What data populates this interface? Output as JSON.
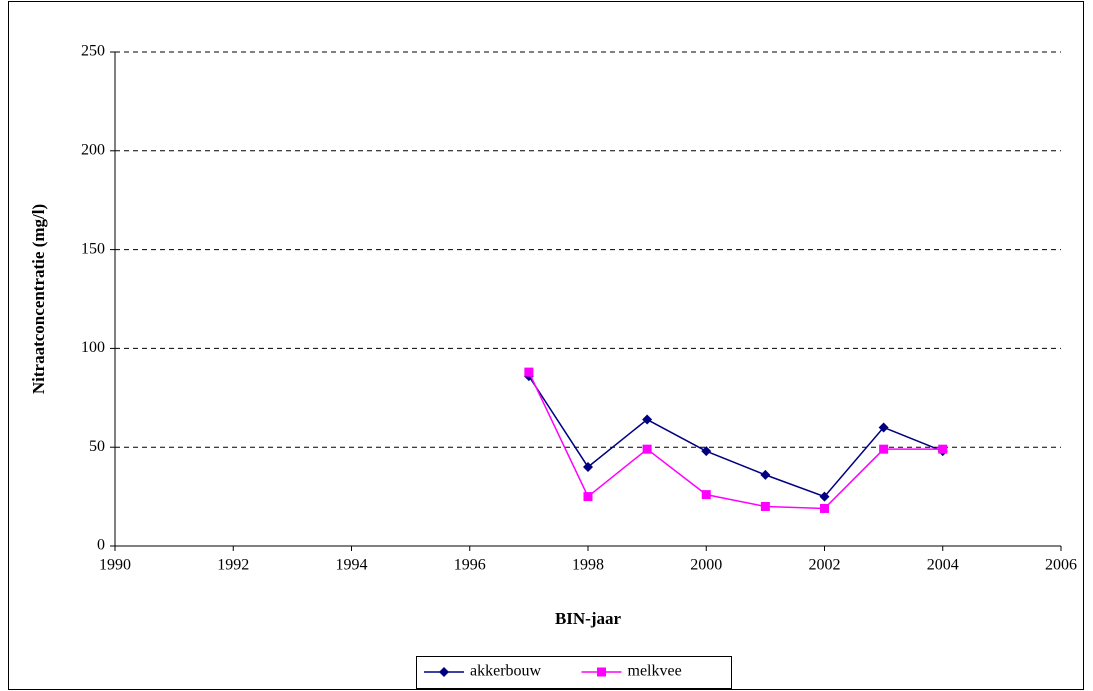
{
  "chart_data": {
    "type": "line",
    "x_label": "BIN-jaar",
    "y_label": "Nitraatconcentratie (mg/l)",
    "x": [
      1997,
      1998,
      1999,
      2000,
      2001,
      2002,
      2003,
      2004
    ],
    "series": [
      {
        "name": "akkerbouw",
        "color": "#000080",
        "marker": "diamond",
        "values": [
          86,
          40,
          64,
          48,
          36,
          25,
          60,
          48
        ]
      },
      {
        "name": "melkvee",
        "color": "#ff00ff",
        "marker": "square",
        "values": [
          88,
          25,
          49,
          26,
          20,
          19,
          49,
          49
        ]
      }
    ],
    "xlim": [
      1990,
      2006
    ],
    "xticks": [
      1990,
      1992,
      1994,
      1996,
      1998,
      2000,
      2002,
      2004,
      2006
    ],
    "ylim": [
      0,
      250
    ],
    "yticks": [
      0,
      50,
      100,
      150,
      200,
      250
    ],
    "grid": true,
    "legend": "bottom"
  }
}
